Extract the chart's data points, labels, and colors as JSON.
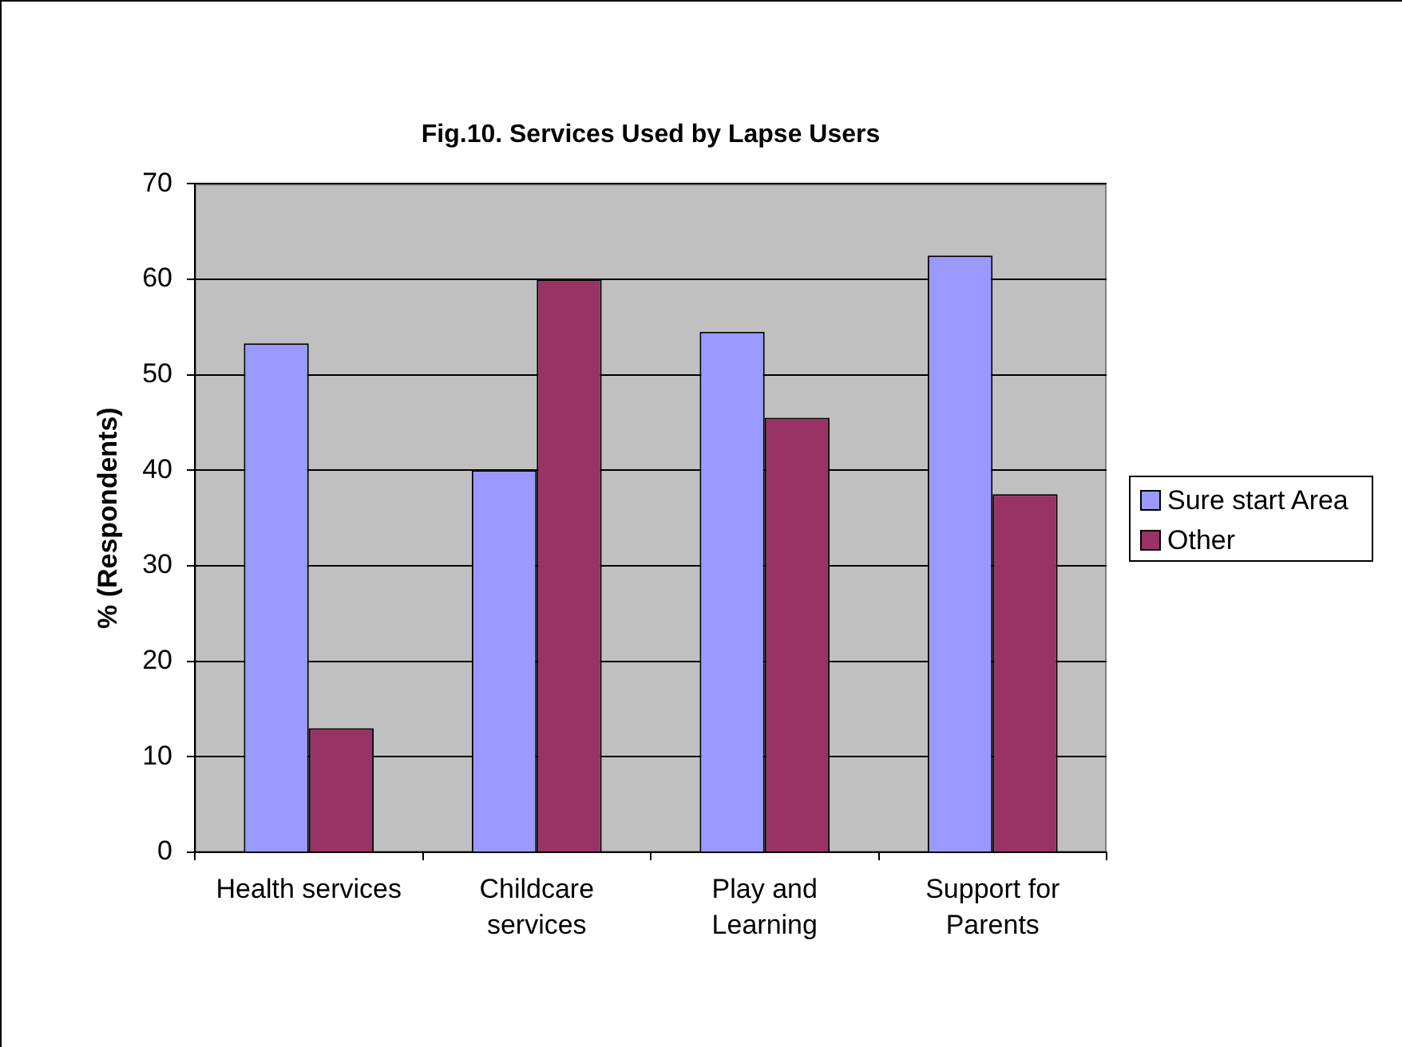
{
  "chart_data": {
    "type": "bar",
    "title": "Fig.10. Services Used by Lapse Users",
    "ylabel": "% (Respondents)",
    "categories": [
      "Health services",
      "Childcare services",
      "Play and Learning",
      "Support for Parents"
    ],
    "series": [
      {
        "name": "Sure start Area",
        "color": "#9999ff",
        "values": [
          53.3,
          40,
          54.5,
          62.5
        ]
      },
      {
        "name": "Other",
        "color": "#993366",
        "values": [
          13,
          60,
          45.5,
          37.5
        ]
      }
    ],
    "ylim": [
      0,
      70
    ],
    "yticks": [
      0,
      10,
      20,
      30,
      40,
      50,
      60,
      70
    ],
    "grid": "y",
    "legend": "right"
  }
}
